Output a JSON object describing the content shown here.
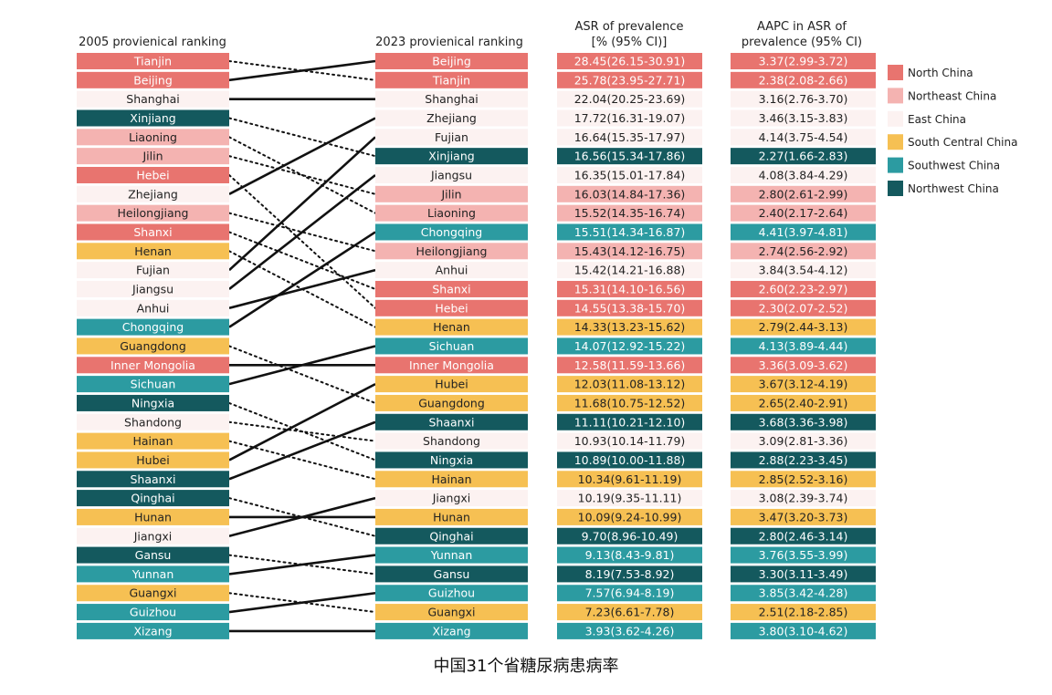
{
  "chart_data": {
    "type": "table",
    "headers": {
      "rank2005": "2005 provienical ranking",
      "rank2023": "2023 provienical ranking",
      "asr": [
        "ASR of prevalence",
        "[% (95% CI)]"
      ],
      "aapc": [
        "AAPC in ASR of",
        "prevalence (95% CI)"
      ]
    },
    "region_colors": {
      "North China": "#e8746f",
      "Northeast China": "#f4b3b1",
      "East China": "#fcf2f1",
      "South Central China": "#f6c053",
      "Southwest China": "#2c9ba1",
      "Northwest China": "#14595e"
    },
    "legend": [
      "North China",
      "Northeast China",
      "East China",
      "South Central China",
      "Southwest China",
      "Northwest China"
    ],
    "rank_2005": [
      {
        "name": "Tianjin",
        "region": "North China"
      },
      {
        "name": "Beijing",
        "region": "North China"
      },
      {
        "name": "Shanghai",
        "region": "East China"
      },
      {
        "name": "Xinjiang",
        "region": "Northwest China"
      },
      {
        "name": "Liaoning",
        "region": "Northeast China"
      },
      {
        "name": "Jilin",
        "region": "Northeast China"
      },
      {
        "name": "Hebei",
        "region": "North China"
      },
      {
        "name": "Zhejiang",
        "region": "East China"
      },
      {
        "name": "Heilongjiang",
        "region": "Northeast China"
      },
      {
        "name": "Shanxi",
        "region": "North China"
      },
      {
        "name": "Henan",
        "region": "South Central China"
      },
      {
        "name": "Fujian",
        "region": "East China"
      },
      {
        "name": "Jiangsu",
        "region": "East China"
      },
      {
        "name": "Anhui",
        "region": "East China"
      },
      {
        "name": "Chongqing",
        "region": "Southwest China"
      },
      {
        "name": "Guangdong",
        "region": "South Central China"
      },
      {
        "name": "Inner Mongolia",
        "region": "North China"
      },
      {
        "name": "Sichuan",
        "region": "Southwest China"
      },
      {
        "name": "Ningxia",
        "region": "Northwest China"
      },
      {
        "name": "Shandong",
        "region": "East China"
      },
      {
        "name": "Hainan",
        "region": "South Central China"
      },
      {
        "name": "Hubei",
        "region": "South Central China"
      },
      {
        "name": "Shaanxi",
        "region": "Northwest China"
      },
      {
        "name": "Qinghai",
        "region": "Northwest China"
      },
      {
        "name": "Hunan",
        "region": "South Central China"
      },
      {
        "name": "Jiangxi",
        "region": "East China"
      },
      {
        "name": "Gansu",
        "region": "Northwest China"
      },
      {
        "name": "Yunnan",
        "region": "Southwest China"
      },
      {
        "name": "Guangxi",
        "region": "South Central China"
      },
      {
        "name": "Guizhou",
        "region": "Southwest China"
      },
      {
        "name": "Xizang",
        "region": "Southwest China"
      }
    ],
    "rank_2023": [
      {
        "name": "Beijing",
        "region": "North China",
        "asr": "28.45(26.15-30.91)",
        "aapc": "3.37(2.99-3.72)"
      },
      {
        "name": "Tianjin",
        "region": "North China",
        "asr": "25.78(23.95-27.71)",
        "aapc": "2.38(2.08-2.66)"
      },
      {
        "name": "Shanghai",
        "region": "East China",
        "asr": "22.04(20.25-23.69)",
        "aapc": "3.16(2.76-3.70)"
      },
      {
        "name": "Zhejiang",
        "region": "East China",
        "asr": "17.72(16.31-19.07)",
        "aapc": "3.46(3.15-3.83)"
      },
      {
        "name": "Fujian",
        "region": "East China",
        "asr": "16.64(15.35-17.97)",
        "aapc": "4.14(3.75-4.54)"
      },
      {
        "name": "Xinjiang",
        "region": "Northwest China",
        "asr": "16.56(15.34-17.86)",
        "aapc": "2.27(1.66-2.83)"
      },
      {
        "name": "Jiangsu",
        "region": "East China",
        "asr": "16.35(15.01-17.84)",
        "aapc": "4.08(3.84-4.29)"
      },
      {
        "name": "Jilin",
        "region": "Northeast China",
        "asr": "16.03(14.84-17.36)",
        "aapc": "2.80(2.61-2.99)"
      },
      {
        "name": "Liaoning",
        "region": "Northeast China",
        "asr": "15.52(14.35-16.74)",
        "aapc": "2.40(2.17-2.64)"
      },
      {
        "name": "Chongqing",
        "region": "Southwest China",
        "asr": "15.51(14.34-16.87)",
        "aapc": "4.41(3.97-4.81)"
      },
      {
        "name": "Heilongjiang",
        "region": "Northeast China",
        "asr": "15.43(14.12-16.75)",
        "aapc": "2.74(2.56-2.92)"
      },
      {
        "name": "Anhui",
        "region": "East China",
        "asr": "15.42(14.21-16.88)",
        "aapc": "3.84(3.54-4.12)"
      },
      {
        "name": "Shanxi",
        "region": "North China",
        "asr": "15.31(14.10-16.56)",
        "aapc": "2.60(2.23-2.97)"
      },
      {
        "name": "Hebei",
        "region": "North China",
        "asr": "14.55(13.38-15.70)",
        "aapc": "2.30(2.07-2.52)"
      },
      {
        "name": "Henan",
        "region": "South Central China",
        "asr": "14.33(13.23-15.62)",
        "aapc": "2.79(2.44-3.13)"
      },
      {
        "name": "Sichuan",
        "region": "Southwest China",
        "asr": "14.07(12.92-15.22)",
        "aapc": "4.13(3.89-4.44)"
      },
      {
        "name": "Inner Mongolia",
        "region": "North China",
        "asr": "12.58(11.59-13.66)",
        "aapc": "3.36(3.09-3.62)"
      },
      {
        "name": "Hubei",
        "region": "South Central China",
        "asr": "12.03(11.08-13.12)",
        "aapc": "3.67(3.12-4.19)"
      },
      {
        "name": "Guangdong",
        "region": "South Central China",
        "asr": "11.68(10.75-12.52)",
        "aapc": "2.65(2.40-2.91)"
      },
      {
        "name": "Shaanxi",
        "region": "Northwest China",
        "asr": "11.11(10.21-12.10)",
        "aapc": "3.68(3.36-3.98)"
      },
      {
        "name": "Shandong",
        "region": "East China",
        "asr": "10.93(10.14-11.79)",
        "aapc": "3.09(2.81-3.36)"
      },
      {
        "name": "Ningxia",
        "region": "Northwest China",
        "asr": "10.89(10.00-11.88)",
        "aapc": "2.88(2.23-3.45)"
      },
      {
        "name": "Hainan",
        "region": "South Central China",
        "asr": "10.34(9.61-11.19)",
        "aapc": "2.85(2.52-3.16)"
      },
      {
        "name": "Jiangxi",
        "region": "East China",
        "asr": "10.19(9.35-11.11)",
        "aapc": "3.08(2.39-3.74)"
      },
      {
        "name": "Hunan",
        "region": "South Central China",
        "asr": "10.09(9.24-10.99)",
        "aapc": "3.47(3.20-3.73)"
      },
      {
        "name": "Qinghai",
        "region": "Northwest China",
        "asr": "9.70(8.96-10.49)",
        "aapc": "2.80(2.46-3.14)"
      },
      {
        "name": "Yunnan",
        "region": "Southwest China",
        "asr": "9.13(8.43-9.81)",
        "aapc": "3.76(3.55-3.99)"
      },
      {
        "name": "Gansu",
        "region": "Northwest China",
        "asr": "8.19(7.53-8.92)",
        "aapc": "3.30(3.11-3.49)"
      },
      {
        "name": "Guizhou",
        "region": "Southwest China",
        "asr": "7.57(6.94-8.19)",
        "aapc": "3.85(3.42-4.28)"
      },
      {
        "name": "Guangxi",
        "region": "South Central China",
        "asr": "7.23(6.61-7.78)",
        "aapc": "2.51(2.18-2.85)"
      },
      {
        "name": "Xizang",
        "region": "Southwest China",
        "asr": "3.93(3.62-4.26)",
        "aapc": "3.80(3.10-4.62)"
      }
    ],
    "legend_placement": "right"
  },
  "caption": "中国31个省糖尿病患病率"
}
